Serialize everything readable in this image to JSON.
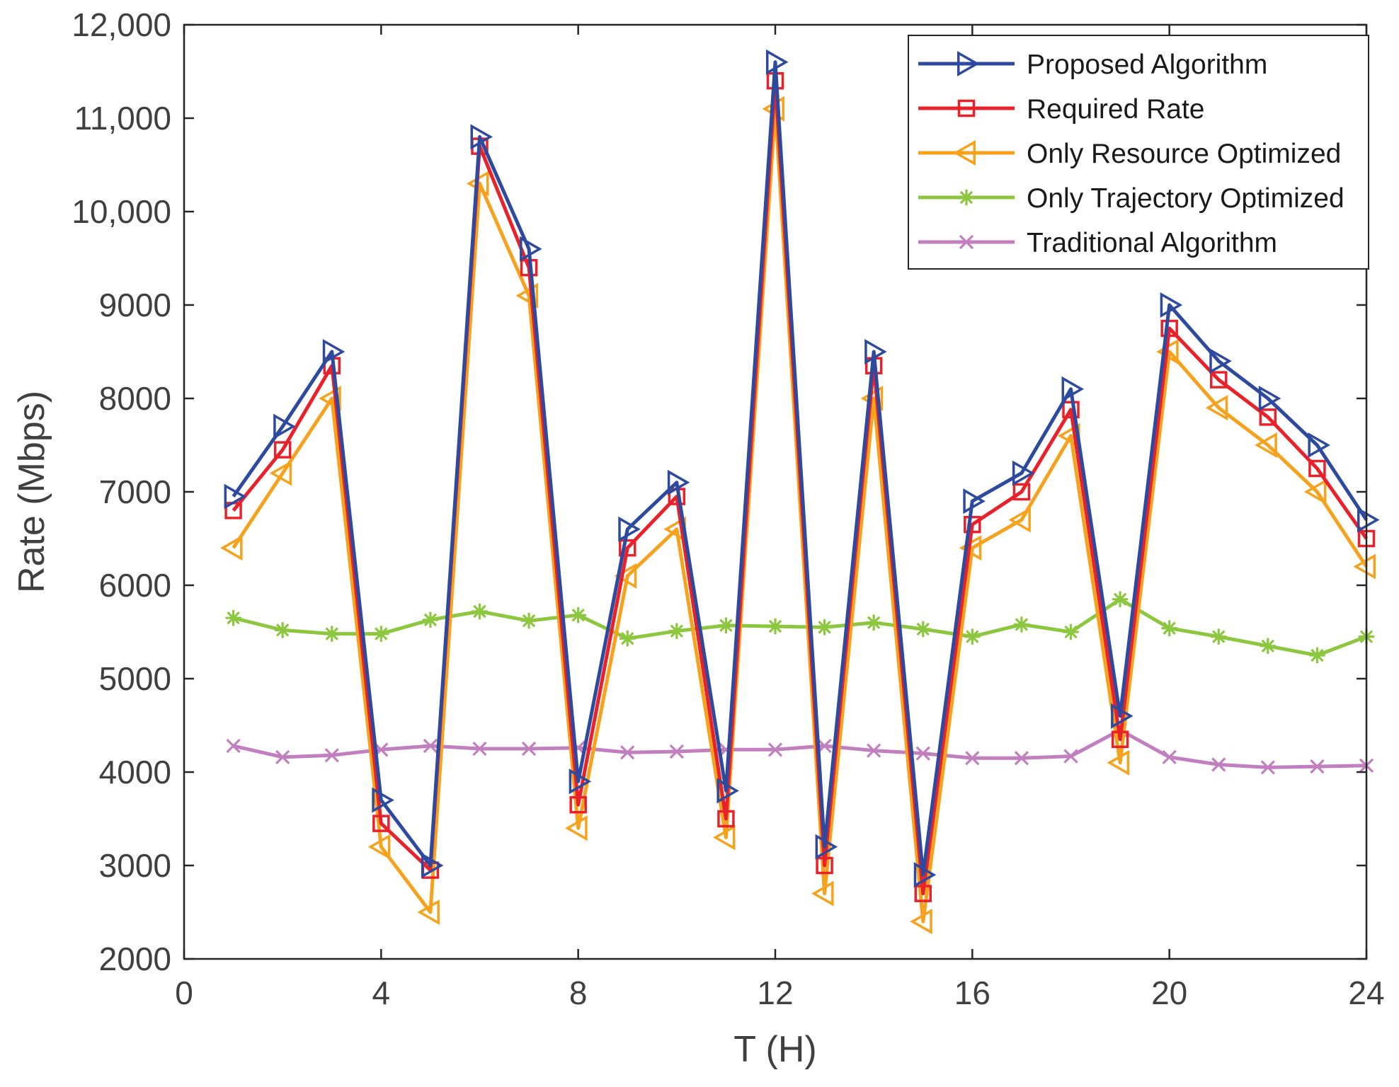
{
  "chart_data": {
    "type": "line",
    "title": "",
    "xlabel": "T (H)",
    "ylabel": "Rate (Mbps)",
    "xlim": [
      0,
      24
    ],
    "ylim": [
      2000,
      12000
    ],
    "xticks": [
      0,
      4,
      8,
      12,
      16,
      20,
      24
    ],
    "xtick_labels": [
      "0",
      "4",
      "8",
      "12",
      "16",
      "20",
      "24"
    ],
    "yticks": [
      2000,
      3000,
      4000,
      5000,
      6000,
      7000,
      8000,
      9000,
      10000,
      11000,
      12000
    ],
    "ytick_labels": [
      "2000",
      "3000",
      "4000",
      "5000",
      "6000",
      "7000",
      "8000",
      "9000",
      "10,000",
      "11,000",
      "12,000"
    ],
    "grid": false,
    "legend_position": "top-right",
    "x": [
      1,
      2,
      3,
      4,
      5,
      6,
      7,
      8,
      9,
      10,
      11,
      12,
      13,
      14,
      15,
      16,
      17,
      18,
      19,
      20,
      21,
      22,
      23,
      24
    ],
    "series": [
      {
        "name": "Proposed Algorithm",
        "color": "#2E4A9E",
        "marker": "triangle-right",
        "values": [
          6950,
          7700,
          8500,
          3700,
          3000,
          10800,
          9600,
          3900,
          6600,
          7100,
          3800,
          11600,
          3200,
          8500,
          2900,
          6900,
          7200,
          8100,
          4600,
          9000,
          8400,
          8000,
          7500,
          6700
        ]
      },
      {
        "name": "Required Rate",
        "color": "#E8212A",
        "marker": "square",
        "values": [
          6800,
          7450,
          8350,
          3450,
          2950,
          10700,
          9400,
          3650,
          6400,
          6950,
          3500,
          11400,
          3000,
          8350,
          2700,
          6650,
          7000,
          7880,
          4350,
          8750,
          8200,
          7800,
          7250,
          6500
        ]
      },
      {
        "name": "Only Resource Optimized",
        "color": "#F6A21C",
        "marker": "triangle-left",
        "values": [
          6400,
          7200,
          8000,
          3200,
          2500,
          10300,
          9100,
          3400,
          6100,
          6600,
          3300,
          11100,
          2700,
          8000,
          2400,
          6400,
          6700,
          7600,
          4100,
          8500,
          7900,
          7500,
          7000,
          6200
        ]
      },
      {
        "name": "Only Trajectory Optimized",
        "color": "#8DC63F",
        "marker": "asterisk",
        "values": [
          5650,
          5520,
          5480,
          5480,
          5630,
          5720,
          5620,
          5680,
          5430,
          5510,
          5570,
          5560,
          5550,
          5600,
          5530,
          5450,
          5580,
          5500,
          5850,
          5540,
          5450,
          5350,
          5250,
          5450
        ]
      },
      {
        "name": "Traditional Algorithm",
        "color": "#C17FBF",
        "marker": "x",
        "values": [
          4280,
          4160,
          4180,
          4240,
          4280,
          4250,
          4250,
          4260,
          4210,
          4220,
          4240,
          4240,
          4280,
          4230,
          4200,
          4150,
          4150,
          4170,
          4450,
          4160,
          4080,
          4050,
          4060,
          4070
        ]
      }
    ]
  }
}
